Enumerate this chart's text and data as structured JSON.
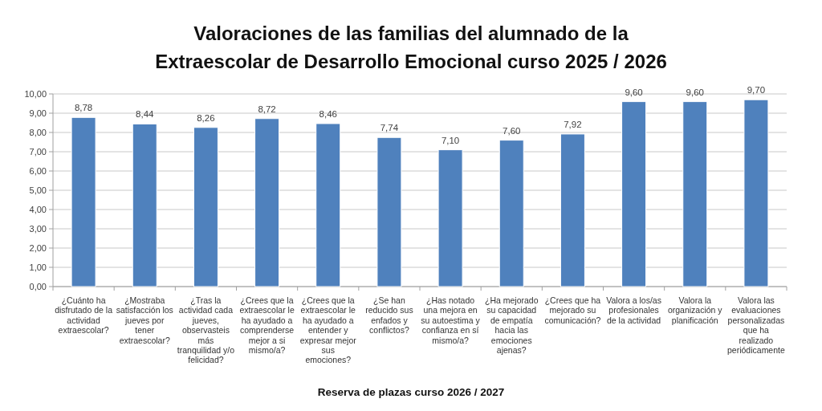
{
  "chart_data": {
    "type": "bar",
    "title": "Valoraciones de las familias del alumnado de la Extraescolar de Desarrollo Emocional curso 2025 / 2026",
    "categories": [
      "¿Cuánto ha disfrutado de la actividad extraescolar?",
      "¿Mostraba satisfacción los jueves por tener extraescolar?",
      "¿Tras la actividad cada jueves, observasteis más tranquilidad y/o felicidad?",
      "¿Crees que la extraescolar le ha ayudado a comprenderse mejor a si mismo/a?",
      "¿Crees que la extraescolar le ha ayudado a entender y expresar mejor sus emociones?",
      "¿Se han reducido sus enfados y conflictos?",
      "¿Has notado una mejora en su autoestima y confianza en sí mismo/a?",
      "¿Ha mejorado su capacidad de empatía hacia las emociones ajenas?",
      "¿Crees que ha mejorado su comunicación?",
      "Valora a los/as profesionales de la actividad",
      "Valora la organización y planificación",
      "Valora las evaluaciones personalizadas que ha realizado periódicamente"
    ],
    "values": [
      8.78,
      8.44,
      8.26,
      8.72,
      8.46,
      7.74,
      7.1,
      7.6,
      7.92,
      9.6,
      9.6,
      9.7
    ],
    "value_labels": [
      "8,78",
      "8,44",
      "8,26",
      "8,72",
      "8,46",
      "7,74",
      "7,10",
      "7,60",
      "7,92",
      "9,60",
      "9,60",
      "9,70"
    ],
    "color": "#4f81bd",
    "ylim": [
      0,
      10
    ],
    "yticks": [
      {
        "value": 0,
        "label": "0,00"
      },
      {
        "value": 1,
        "label": "1,00"
      },
      {
        "value": 2,
        "label": "2,00"
      },
      {
        "value": 3,
        "label": "3,00"
      },
      {
        "value": 4,
        "label": "4,00"
      },
      {
        "value": 5,
        "label": "5,00"
      },
      {
        "value": 6,
        "label": "6,00"
      },
      {
        "value": 7,
        "label": "7,00"
      },
      {
        "value": 8,
        "label": "8,00"
      },
      {
        "value": 9,
        "label": "9,00"
      },
      {
        "value": 10,
        "label": "10,00"
      }
    ],
    "grid": "y",
    "annotations": [
      "Reserva de plazas curso 2026 / 2027"
    ]
  }
}
